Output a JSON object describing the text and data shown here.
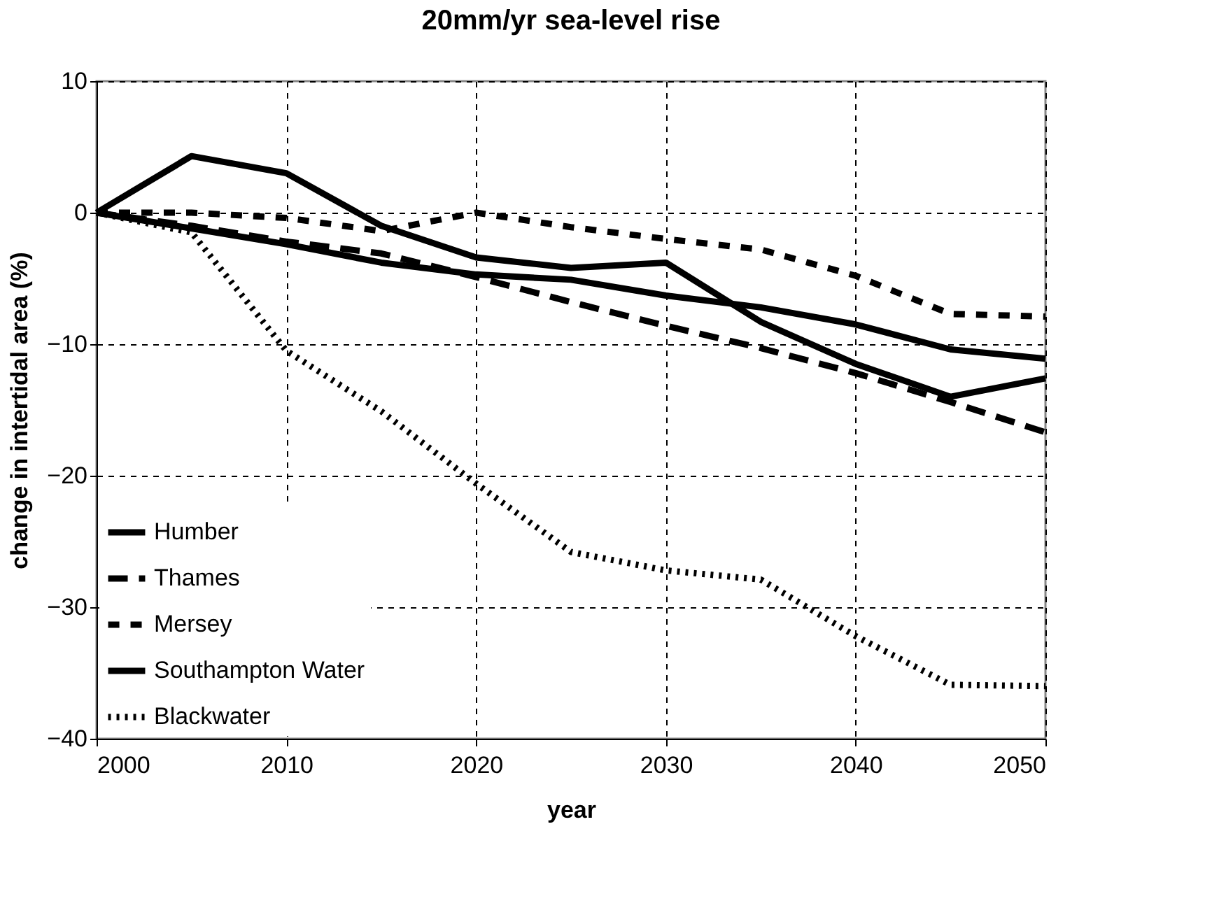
{
  "chart_data": {
    "type": "line",
    "title": "20mm/yr sea-level rise",
    "xlabel": "year",
    "ylabel": "change in intertidal area (%)",
    "x": [
      2000,
      2005,
      2010,
      2015,
      2020,
      2025,
      2030,
      2035,
      2040,
      2045,
      2050
    ],
    "series": [
      {
        "name": "Humber",
        "color": "#000000",
        "line_style": "solid",
        "values": [
          0,
          -1.2,
          -2.4,
          -3.8,
          -4.7,
          -5.1,
          -6.3,
          -7.2,
          -8.5,
          -10.4,
          -11.1
        ]
      },
      {
        "name": "Thames",
        "color": "#000000",
        "line_style": "dashed",
        "values": [
          0,
          -1.0,
          -2.2,
          -3.1,
          -4.9,
          -6.8,
          -8.6,
          -10.3,
          -12.2,
          -14.4,
          -16.7
        ]
      },
      {
        "name": "Mersey",
        "color": "#000000",
        "line_style": "dashed",
        "values": [
          0,
          0,
          -0.4,
          -1.4,
          0,
          -1.1,
          -2.0,
          -2.8,
          -4.8,
          -7.7,
          -7.9
        ]
      },
      {
        "name": "Southampton Water",
        "color": "#000000",
        "line_style": "solid",
        "values": [
          0,
          4.3,
          3.0,
          -1.0,
          -3.4,
          -4.2,
          -3.8,
          -8.3,
          -11.5,
          -14.0,
          -12.6
        ]
      },
      {
        "name": "Blackwater",
        "color": "#000000",
        "line_style": "dotted",
        "values": [
          0,
          -1.5,
          -10.5,
          -15.1,
          -20.6,
          -25.8,
          -27.2,
          -27.9,
          -32.2,
          -35.9,
          -36.0
        ]
      }
    ],
    "xlim": [
      2000,
      2050
    ],
    "xticks": [
      2000,
      2010,
      2020,
      2030,
      2040,
      2050
    ],
    "ylim": [
      -40,
      10
    ],
    "yticks": [
      -40,
      -30,
      -20,
      -10,
      0,
      10
    ],
    "grid": true,
    "legend": "bottom left",
    "marker": "none"
  }
}
